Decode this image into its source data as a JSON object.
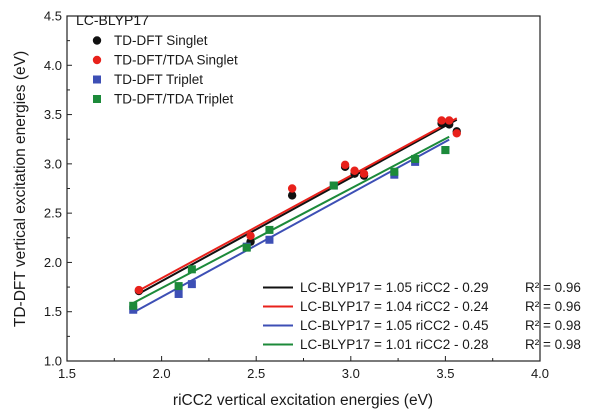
{
  "chart_data": {
    "type": "scatter",
    "panel_title": "LC-BLYP17",
    "xlabel": "riCC2 vertical excitation energies (eV)",
    "ylabel": "TD-DFT vertical excitation energies (eV)",
    "xlim": [
      1.5,
      4.0
    ],
    "ylim": [
      1.0,
      4.5
    ],
    "x_ticks": [
      "1.5",
      "2.0",
      "2.5",
      "3.0",
      "3.5",
      "4.0"
    ],
    "y_ticks": [
      "1.0",
      "1.5",
      "2.0",
      "2.5",
      "3.0",
      "3.5",
      "4.0",
      "4.5"
    ],
    "grid": false,
    "legend_position": "top-left",
    "series": [
      {
        "name": "TD-DFT Singlet",
        "marker": "circle",
        "color": "#111111",
        "points": [
          [
            1.88,
            1.71
          ],
          [
            2.47,
            2.21
          ],
          [
            2.69,
            2.68
          ],
          [
            2.97,
            2.97
          ],
          [
            3.02,
            2.9
          ],
          [
            3.07,
            2.88
          ],
          [
            3.48,
            3.41
          ],
          [
            3.52,
            3.4
          ],
          [
            3.56,
            3.33
          ]
        ]
      },
      {
        "name": "TD-DFT/TDA Singlet",
        "marker": "circle",
        "color": "#e8211b",
        "points": [
          [
            1.88,
            1.72
          ],
          [
            2.47,
            2.27
          ],
          [
            2.69,
            2.75
          ],
          [
            2.97,
            2.99
          ],
          [
            3.02,
            2.93
          ],
          [
            3.07,
            2.9
          ],
          [
            3.48,
            3.44
          ],
          [
            3.52,
            3.44
          ],
          [
            3.56,
            3.31
          ]
        ]
      },
      {
        "name": "TD-DFT Triplet",
        "marker": "square",
        "color": "#3d4fb5",
        "points": [
          [
            1.85,
            1.52
          ],
          [
            2.09,
            1.68
          ],
          [
            2.16,
            1.78
          ],
          [
            2.45,
            2.16
          ],
          [
            2.57,
            2.23
          ],
          [
            2.91,
            2.78
          ],
          [
            3.23,
            2.89
          ],
          [
            3.34,
            3.02
          ],
          [
            3.5,
            3.14
          ]
        ]
      },
      {
        "name": "TD-DFT/TDA Triplet",
        "marker": "square",
        "color": "#1c8a3a",
        "points": [
          [
            1.85,
            1.56
          ],
          [
            2.09,
            1.76
          ],
          [
            2.16,
            1.93
          ],
          [
            2.45,
            2.15
          ],
          [
            2.57,
            2.33
          ],
          [
            2.91,
            2.78
          ],
          [
            3.23,
            2.92
          ],
          [
            3.34,
            3.05
          ],
          [
            3.5,
            3.14
          ]
        ]
      }
    ],
    "fits": [
      {
        "label": "LC-BLYP17 = 1.05 riCC2 - 0.29",
        "r2": "R² = 0.96",
        "color": "#111111",
        "slope": 1.05,
        "intercept": -0.29,
        "x_range": [
          1.88,
          3.56
        ]
      },
      {
        "label": "LC-BLYP17 = 1.04 riCC2 - 0.24",
        "r2": "R² = 0.96",
        "color": "#e8211b",
        "slope": 1.04,
        "intercept": -0.24,
        "x_range": [
          1.88,
          3.56
        ]
      },
      {
        "label": "LC-BLYP17 = 1.05 riCC2 - 0.45",
        "r2": "R² = 0.98",
        "color": "#3d4fb5",
        "slope": 1.05,
        "intercept": -0.45,
        "x_range": [
          1.85,
          3.52
        ]
      },
      {
        "label": "LC-BLYP17 = 1.01 riCC2 - 0.28",
        "r2": "R² = 0.98",
        "color": "#1c8a3a",
        "slope": 1.01,
        "intercept": -0.28,
        "x_range": [
          1.85,
          3.52
        ]
      }
    ]
  }
}
